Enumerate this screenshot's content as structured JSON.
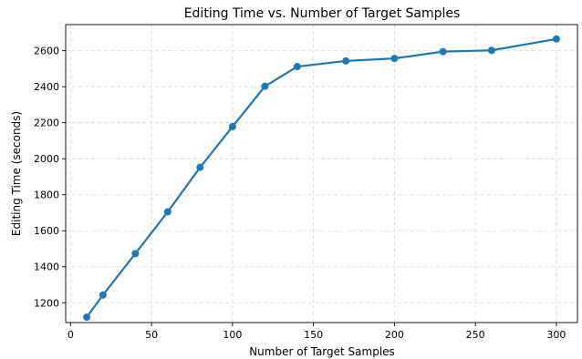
{
  "chart_data": {
    "type": "line",
    "title": "Editing Time vs. Number of Target Samples",
    "xlabel": "Number of Target Samples",
    "ylabel": "Editing Time (seconds)",
    "xlim": [
      -3,
      313
    ],
    "ylim": [
      1090,
      2745
    ],
    "xticks": [
      0,
      50,
      100,
      150,
      200,
      250,
      300
    ],
    "yticks": [
      1200,
      1400,
      1600,
      1800,
      2000,
      2200,
      2400,
      2600
    ],
    "grid": true,
    "color": "#1f77b4",
    "series": [
      {
        "x": [
          10,
          20,
          40,
          60,
          80,
          100,
          120,
          140,
          170,
          200,
          230,
          260,
          300
        ],
        "y": [
          1120,
          1243,
          1473,
          1705,
          1952,
          2178,
          2402,
          2512,
          2543,
          2557,
          2595,
          2602,
          2665
        ]
      }
    ]
  }
}
